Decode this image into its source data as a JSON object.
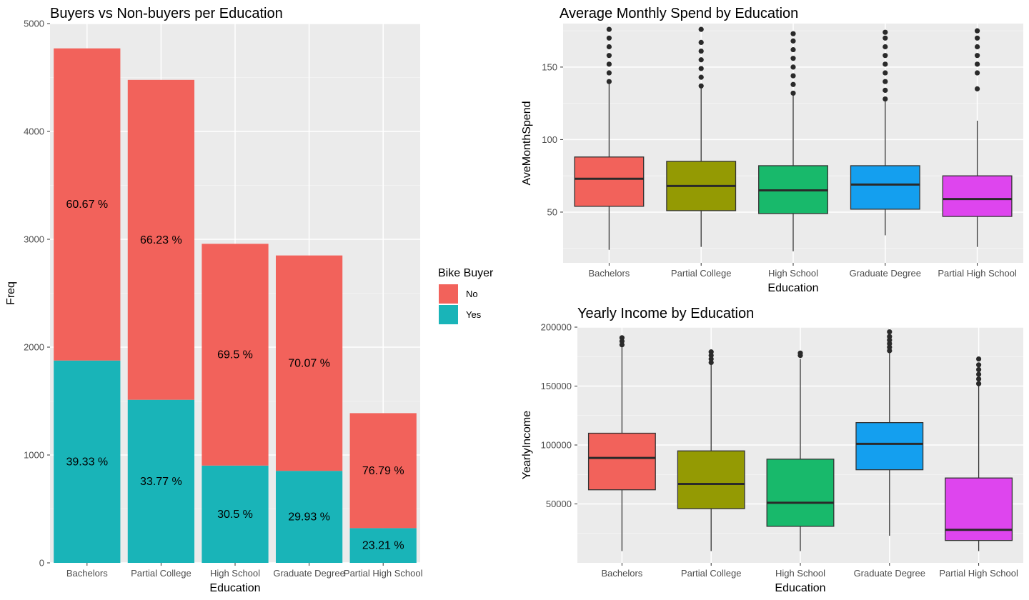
{
  "chart_data": [
    {
      "type": "bar",
      "title": "Buyers vs Non-buyers per Education",
      "xlabel": "Education",
      "ylabel": "Freq",
      "ylim": [
        0,
        5000
      ],
      "yticks": [
        "0",
        "1000",
        "2000",
        "3000",
        "4000",
        "5000"
      ],
      "categories": [
        "Bachelors",
        "Partial College",
        "High School",
        "Graduate Degree",
        "Partial High School"
      ],
      "series": [
        {
          "name": "Yes",
          "values": [
            1876,
            1512,
            902,
            853,
            322
          ],
          "labels": [
            "39.33 %",
            "33.77 %",
            "30.5 %",
            "29.93 %",
            "23.21 %"
          ],
          "color": "#19B4B8"
        },
        {
          "name": "No",
          "values": [
            2894,
            2966,
            2056,
            1997,
            1066
          ],
          "labels": [
            "60.67 %",
            "66.23 %",
            "69.5 %",
            "70.07 %",
            "76.79 %"
          ],
          "color": "#F2625B"
        }
      ],
      "legend": {
        "title": "Bike Buyer",
        "items": [
          {
            "label": "No",
            "color": "#F2625B"
          },
          {
            "label": "Yes",
            "color": "#19B4B8"
          }
        ],
        "position": "right"
      }
    },
    {
      "type": "box",
      "title": "Average Monthly Spend by Education",
      "xlabel": "Education",
      "ylabel": "AveMonthSpend",
      "ylim": [
        15,
        180
      ],
      "yticks": [
        "50",
        "100",
        "150"
      ],
      "categories": [
        "Bachelors",
        "Partial College",
        "High School",
        "Graduate Degree",
        "Partial High School"
      ],
      "boxes": [
        {
          "min": 24,
          "q1": 54,
          "median": 73,
          "q3": 88,
          "max": 140,
          "outliers": [
            140,
            146,
            152,
            158,
            164,
            170,
            176
          ],
          "color": "#F2625B"
        },
        {
          "min": 26,
          "q1": 51,
          "median": 68,
          "q3": 85,
          "max": 136,
          "outliers": [
            137,
            143,
            149,
            155,
            161,
            167,
            176
          ],
          "color": "#949A03"
        },
        {
          "min": 23,
          "q1": 49,
          "median": 65,
          "q3": 82,
          "max": 131,
          "outliers": [
            132,
            138,
            144,
            150,
            156,
            162,
            168,
            173
          ],
          "color": "#18B96B"
        },
        {
          "min": 34,
          "q1": 52,
          "median": 69,
          "q3": 82,
          "max": 127,
          "outliers": [
            128,
            134,
            140,
            146,
            152,
            158,
            164,
            170,
            174
          ],
          "color": "#149FEF"
        },
        {
          "min": 26,
          "q1": 47,
          "median": 59,
          "q3": 75,
          "max": 113,
          "outliers": [
            135,
            146,
            152,
            158,
            164,
            170,
            175
          ],
          "color": "#DE45EE"
        }
      ]
    },
    {
      "type": "box",
      "title": "Yearly Income by Education",
      "xlabel": "Education",
      "ylabel": "YearlyIncome",
      "ylim": [
        0,
        200000
      ],
      "yticks": [
        "50000",
        "100000",
        "150000",
        "200000"
      ],
      "categories": [
        "Bachelors",
        "Partial College",
        "High School",
        "Graduate Degree",
        "Partial High School"
      ],
      "boxes": [
        {
          "min": 10000,
          "q1": 62000,
          "median": 89000,
          "q3": 110000,
          "max": 183000,
          "outliers": [
            185000,
            188000,
            191000
          ],
          "color": "#F2625B"
        },
        {
          "min": 10000,
          "q1": 46000,
          "median": 67000,
          "q3": 95000,
          "max": 168000,
          "outliers": [
            170000,
            173000,
            176000,
            179000
          ],
          "color": "#949A03"
        },
        {
          "min": 10000,
          "q1": 31000,
          "median": 51000,
          "q3": 88000,
          "max": 173000,
          "outliers": [
            176000,
            178000
          ],
          "color": "#18B96B"
        },
        {
          "min": 23000,
          "q1": 79000,
          "median": 101000,
          "q3": 119000,
          "max": 178000,
          "outliers": [
            180000,
            183000,
            186000,
            189000,
            192000,
            196000
          ],
          "color": "#149FEF"
        },
        {
          "min": 10000,
          "q1": 19000,
          "median": 28000,
          "q3": 72000,
          "max": 150000,
          "outliers": [
            152000,
            156000,
            160000,
            164000,
            168000,
            173000
          ],
          "color": "#DE45EE"
        }
      ]
    }
  ]
}
